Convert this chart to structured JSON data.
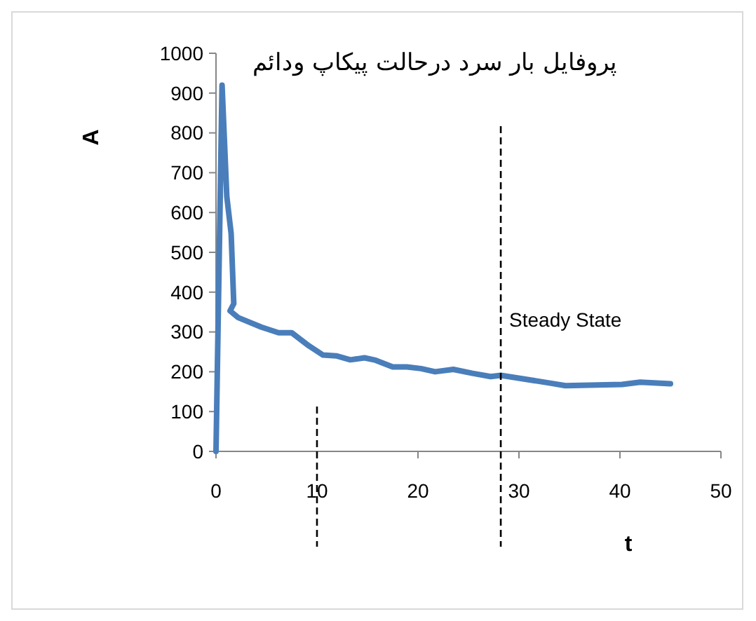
{
  "chart_data": {
    "type": "line",
    "title": "پروفایل بار سرد درحالت پیکاپ ودائم",
    "xlabel": "t",
    "ylabel": "A",
    "series": [
      {
        "color": "#4a7ebb",
        "x": [
          0,
          0.6,
          1.07,
          1.5,
          1.76,
          1.39,
          2.2,
          4.5,
          6.2,
          7.5,
          9.2,
          10.6,
          11.9,
          13.3,
          14.7,
          15.8,
          17.5,
          18.9,
          20.3,
          21.7,
          23.5,
          25.4,
          27.2,
          28.2,
          33.2,
          34.6,
          40.2,
          42,
          45
        ],
        "values": [
          0,
          920,
          640,
          547,
          371,
          353,
          336,
          312,
          298,
          298,
          265,
          242,
          240,
          230,
          235,
          229,
          212,
          212,
          208,
          200,
          206,
          196,
          188,
          191,
          171,
          165,
          168,
          174,
          170
        ]
      }
    ],
    "xlim": [
      0,
      50
    ],
    "xticks": [
      0,
      10,
      20,
      30,
      40,
      50
    ],
    "ylim": [
      0,
      1000
    ],
    "yticks": [
      0,
      100,
      200,
      300,
      400,
      500,
      600,
      700,
      800,
      900,
      1000
    ],
    "grid": false,
    "marker": "none",
    "line_style": "solid",
    "ref_lines": [
      {
        "axis": "x",
        "value": 28.2,
        "label": "Steady State",
        "line_style": "dashed",
        "color": "#000000"
      },
      {
        "axis": "x",
        "value": 10,
        "line_style": "dashed",
        "color": "#000000"
      }
    ]
  }
}
